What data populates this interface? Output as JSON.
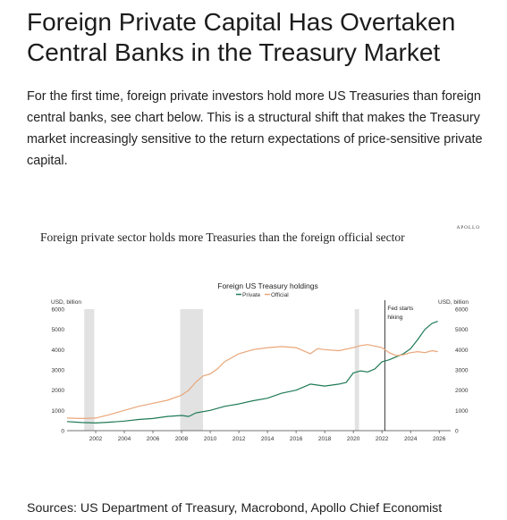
{
  "headline": "Foreign Private Capital Has Overtaken Central Banks in the Treasury Market",
  "intro": "For the first time, foreign private investors hold more US Treasuries than foreign central banks, see chart below. This is a structural shift that makes the Treasury market increasingly sensitive to the return expectations of price-sensitive private capital.",
  "chart_panel": {
    "brand": "APOLLO",
    "title": "Foreign private sector holds more Treasuries than the foreign official sector"
  },
  "sources": "Sources: US Department of Treasury, Macrobond, Apollo Chief Economist",
  "chart_data": {
    "type": "line",
    "title": "Foreign US Treasury holdings",
    "ylabel_left": "USD, billion",
    "ylabel_right": "USD, billion",
    "xlim": [
      2000,
      2026.8
    ],
    "ylim": [
      0,
      6000
    ],
    "x_ticks": [
      2002,
      2004,
      2006,
      2008,
      2010,
      2012,
      2014,
      2016,
      2018,
      2020,
      2022,
      2024,
      2026
    ],
    "y_ticks": [
      0,
      1000,
      2000,
      3000,
      4000,
      5000,
      6000
    ],
    "grid": false,
    "legend_position": "top-center",
    "colors": {
      "private": "#1f7a56",
      "official": "#e9a679",
      "recession": "#e2e2e2",
      "axis": "#444444"
    },
    "recessions": [
      [
        2001.2,
        2001.9
      ],
      [
        2007.9,
        2009.5
      ],
      [
        2020.1,
        2020.4
      ]
    ],
    "annotation": {
      "text_lines": [
        "Fed starts",
        "hiking"
      ],
      "x": 2022.2
    },
    "series": [
      {
        "name": "Private",
        "x": [
          2000,
          2001,
          2002,
          2003,
          2004,
          2005,
          2006,
          2007,
          2008,
          2008.5,
          2009,
          2010,
          2011,
          2012,
          2013,
          2014,
          2015,
          2016,
          2017,
          2018,
          2019,
          2019.5,
          2020,
          2020.5,
          2021,
          2021.5,
          2022,
          2022.5,
          2023,
          2023.5,
          2024,
          2024.5,
          2025,
          2025.5,
          2025.9
        ],
        "values": [
          450,
          400,
          380,
          420,
          470,
          550,
          600,
          700,
          750,
          700,
          880,
          1000,
          1200,
          1320,
          1480,
          1600,
          1850,
          2000,
          2300,
          2200,
          2300,
          2380,
          2850,
          2950,
          2900,
          3050,
          3400,
          3500,
          3650,
          3800,
          4050,
          4500,
          5000,
          5300,
          5400
        ]
      },
      {
        "name": "Official",
        "x": [
          2000,
          2001,
          2002,
          2003,
          2004,
          2005,
          2006,
          2007,
          2008,
          2008.5,
          2009,
          2009.5,
          2010,
          2010.5,
          2011,
          2012,
          2013,
          2014,
          2015,
          2016,
          2017,
          2017.5,
          2018,
          2019,
          2020,
          2020.5,
          2021,
          2022,
          2022.5,
          2023,
          2023.5,
          2024,
          2024.5,
          2025,
          2025.5,
          2025.9
        ],
        "values": [
          620,
          600,
          620,
          800,
          1000,
          1200,
          1350,
          1500,
          1750,
          2000,
          2400,
          2700,
          2800,
          3050,
          3400,
          3800,
          4000,
          4100,
          4150,
          4100,
          3800,
          4050,
          4000,
          3950,
          4100,
          4200,
          4250,
          4100,
          3850,
          3700,
          3750,
          3850,
          3900,
          3850,
          3950,
          3900
        ]
      }
    ]
  }
}
